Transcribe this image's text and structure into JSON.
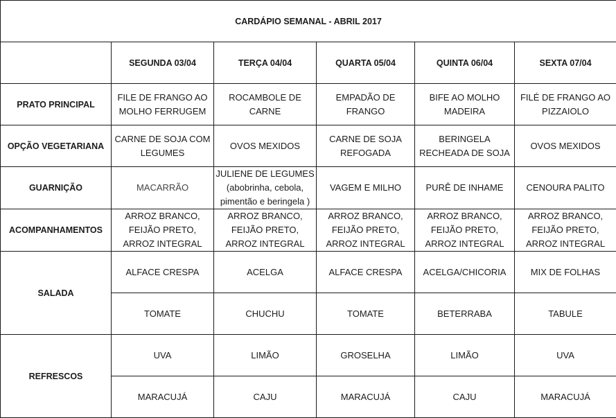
{
  "title": "CARDÁPIO SEMANAL - ABRIL 2017",
  "days": [
    "SEGUNDA   03/04",
    "TERÇA  04/04",
    "QUARTA 05/04",
    "QUINTA 06/04",
    "SEXTA 07/04"
  ],
  "rows": {
    "prato_principal": {
      "label": "PRATO PRINCIPAL",
      "values": [
        "FILE DE FRANGO AO MOLHO FERRUGEM",
        "ROCAMBOLE DE CARNE",
        "EMPADÃO DE FRANGO",
        "BIFE AO MOLHO MADEIRA",
        "FILÉ DE FRANGO AO PIZZAIOLO"
      ]
    },
    "opcao_vegetariana": {
      "label": "OPÇÃO VEGETARIANA",
      "values": [
        "CARNE DE SOJA COM LEGUMES",
        "OVOS MEXIDOS",
        "CARNE DE SOJA REFOGADA",
        "BERINGELA RECHEADA DE SOJA",
        "OVOS MEXIDOS"
      ]
    },
    "guarnicao": {
      "label": "GUARNIÇÃO",
      "values": [
        "MACARRÃO",
        "JULIENE DE LEGUMES (abobrinha, cebola, pimentão e beringela )",
        "VAGEM E MILHO",
        "PURÊ DE INHAME",
        "CENOURA PALITO"
      ]
    },
    "acompanhamentos": {
      "label": "ACOMPANHAMENTOS",
      "values": [
        "ARROZ BRANCO, FEIJÃO PRETO, ARROZ INTEGRAL",
        "ARROZ BRANCO, FEIJÃO PRETO, ARROZ INTEGRAL",
        "ARROZ BRANCO, FEIJÃO PRETO, ARROZ INTEGRAL",
        "ARROZ BRANCO, FEIJÃO PRETO, ARROZ INTEGRAL",
        "ARROZ BRANCO, FEIJÃO PRETO, ARROZ INTEGRAL"
      ]
    },
    "salada": {
      "label": "SALADA",
      "values1": [
        "ALFACE CRESPA",
        "ACELGA",
        "ALFACE CRESPA",
        "ACELGA/CHICORIA",
        "MIX DE FOLHAS"
      ],
      "values2": [
        "TOMATE",
        "CHUCHU",
        "TOMATE",
        "BETERRABA",
        "TABULE"
      ]
    },
    "refrescos": {
      "label": "REFRESCOS",
      "values1": [
        "UVA",
        "LIMÃO",
        "GROSELHA",
        "LIMÃO",
        "UVA"
      ],
      "values2": [
        "MARACUJÁ",
        "CAJU",
        "MARACUJÁ",
        "CAJU",
        "MARACUJÁ"
      ]
    }
  }
}
